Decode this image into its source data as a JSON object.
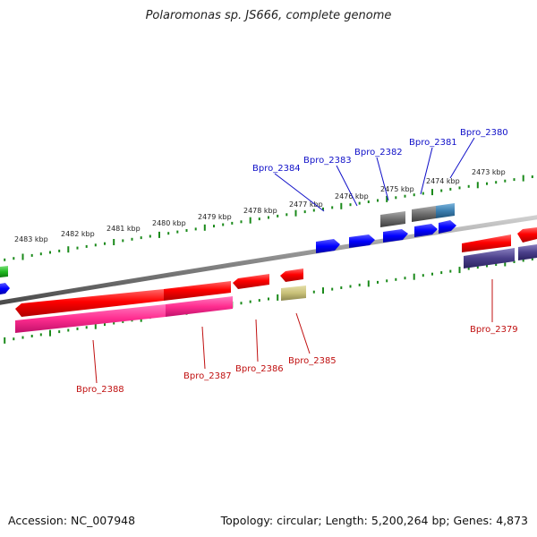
{
  "title": "Polaromonas sp. JS666, complete genome",
  "footer": {
    "accession": "Accession: NC_007948",
    "summary": "Topology: circular; Length: 5,200,264 bp; Genes: 4,873"
  },
  "colors": {
    "forward_gene": "#ff0000",
    "reverse_gene_blue": "#0000ff",
    "pink_feature": "#ff2d8f",
    "grey_feature": "#6e6e6e",
    "olive_feature": "#c8c078",
    "slate_feature": "#4a3f8a",
    "steel_feature": "#3c7fb0",
    "green_feature": "#22bb22",
    "tick": "#1a8a1a",
    "backbone": "#8a8a8a",
    "label_blue": "#1010c8",
    "label_red": "#c01010"
  },
  "kbp_labels": [
    "2473 kbp",
    "2474 kbp",
    "2475 kbp",
    "2476 kbp",
    "2477 kbp",
    "2478 kbp",
    "2479 kbp",
    "2480 kbp",
    "2481 kbp",
    "2482 kbp",
    "2483 kbp"
  ],
  "gene_labels_top": [
    "Bpro_2380",
    "Bpro_2381",
    "Bpro_2382",
    "Bpro_2383",
    "Bpro_2384"
  ],
  "gene_labels_bottom": [
    "Bpro_2379",
    "Bpro_2385",
    "Bpro_2386",
    "Bpro_2387",
    "Bpro_2388"
  ]
}
